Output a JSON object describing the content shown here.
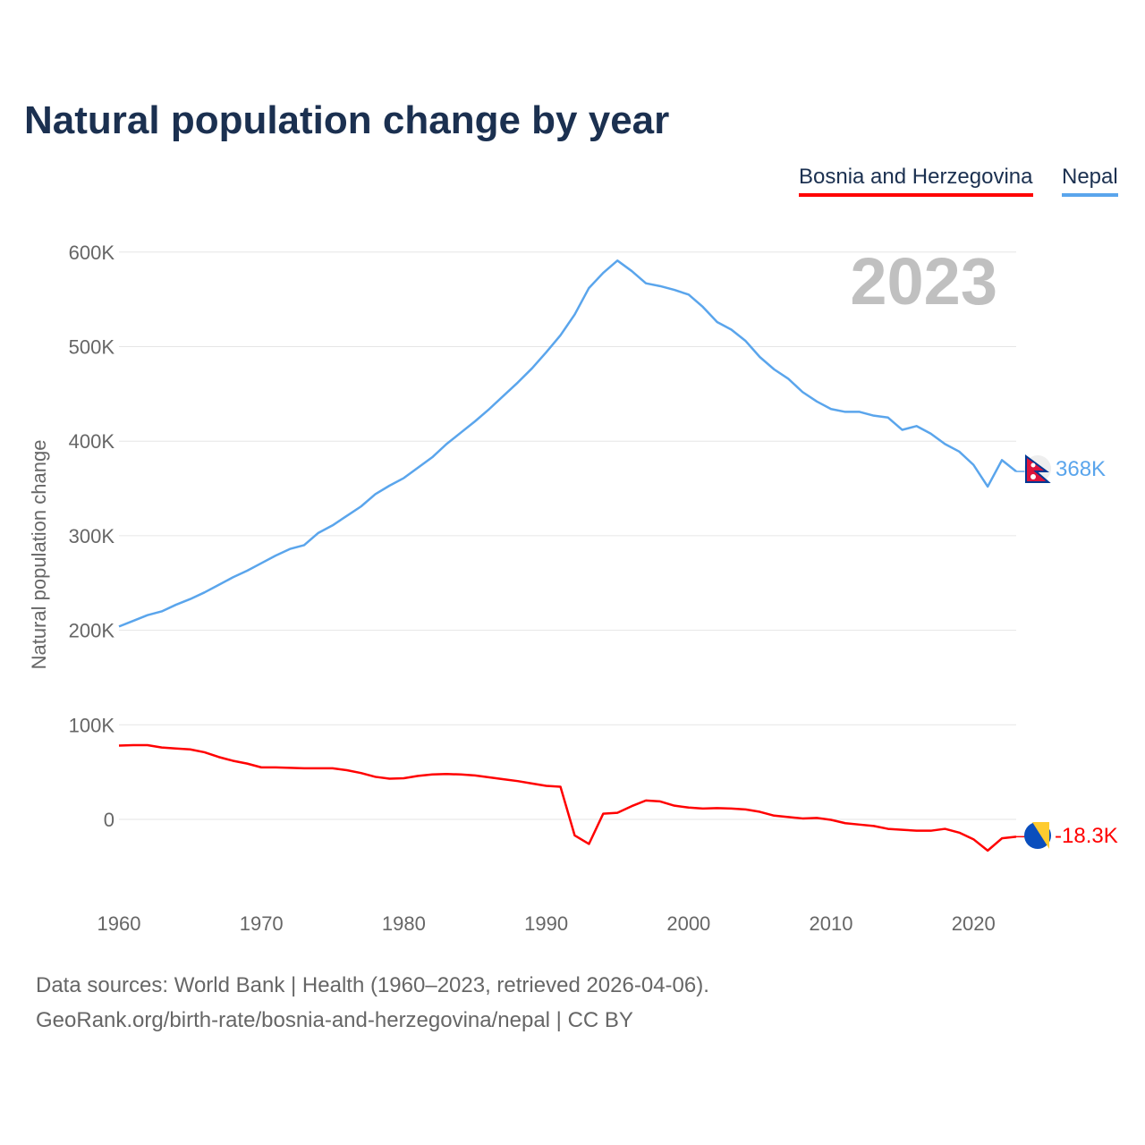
{
  "chart_data": {
    "type": "line",
    "title": "Natural population change by year",
    "xlabel": "",
    "ylabel": "Natural population change",
    "xlim": [
      1960,
      2023
    ],
    "ylim": [
      -60000,
      620000
    ],
    "x_ticks": [
      1960,
      1970,
      1980,
      1990,
      2000,
      2010,
      2020
    ],
    "y_ticks": [
      0,
      100000,
      200000,
      300000,
      400000,
      500000,
      600000
    ],
    "y_tick_labels": [
      "0",
      "100K",
      "200K",
      "300K",
      "400K",
      "500K",
      "600K"
    ],
    "grid": true,
    "legend_position": "top-right",
    "year_label": "2023",
    "x": [
      1960,
      1961,
      1962,
      1963,
      1964,
      1965,
      1966,
      1967,
      1968,
      1969,
      1970,
      1971,
      1972,
      1973,
      1974,
      1975,
      1976,
      1977,
      1978,
      1979,
      1980,
      1981,
      1982,
      1983,
      1984,
      1985,
      1986,
      1987,
      1988,
      1989,
      1990,
      1991,
      1992,
      1993,
      1994,
      1995,
      1996,
      1997,
      1998,
      1999,
      2000,
      2001,
      2002,
      2003,
      2004,
      2005,
      2006,
      2007,
      2008,
      2009,
      2010,
      2011,
      2012,
      2013,
      2014,
      2015,
      2016,
      2017,
      2018,
      2019,
      2020,
      2021,
      2022,
      2023
    ],
    "series": [
      {
        "name": "Bosnia and Herzegovina",
        "color": "#ff0000",
        "end_label": "-18.3K",
        "values": [
          78,
          78.5,
          78.5,
          76,
          75,
          74,
          71,
          66,
          62,
          59,
          55,
          55,
          54.5,
          54,
          54,
          54,
          52,
          49,
          45,
          43,
          43.5,
          46,
          47.5,
          48,
          47.5,
          46.5,
          44.5,
          42.5,
          40.5,
          38,
          35.5,
          34.5,
          -17,
          -26,
          6,
          7,
          14,
          20,
          19,
          14.5,
          12.5,
          11.5,
          12,
          11.5,
          10.5,
          8,
          4,
          2.5,
          1,
          1.5,
          -0.5,
          -4,
          -5.5,
          -7,
          -10,
          -11,
          -12,
          -12,
          -10,
          -14,
          -21,
          -33,
          -20,
          -18.3
        ],
        "unit": "thousands"
      },
      {
        "name": "Nepal",
        "color": "#5aa5ec",
        "end_label": "368K",
        "values": [
          204,
          210,
          216,
          220,
          227,
          233,
          240,
          248,
          256,
          263,
          271,
          279,
          286,
          290,
          303,
          311,
          321,
          331,
          344,
          353,
          361,
          372,
          383,
          397,
          409,
          421,
          434,
          448,
          462,
          477,
          494,
          512,
          534,
          562,
          578,
          591,
          580,
          567,
          564,
          560,
          555,
          542,
          526,
          518,
          506,
          489,
          476,
          466,
          452,
          442,
          434,
          431,
          431,
          427,
          425,
          412,
          416,
          408,
          397,
          389,
          375,
          352,
          380,
          368
        ],
        "unit": "thousands"
      }
    ]
  },
  "footer": {
    "line1": "Data sources: World Bank | Health (1960–2023, retrieved 2026-04-06).",
    "line2": "GeoRank.org/birth-rate/bosnia-and-herzegovina/nepal | CC BY"
  }
}
